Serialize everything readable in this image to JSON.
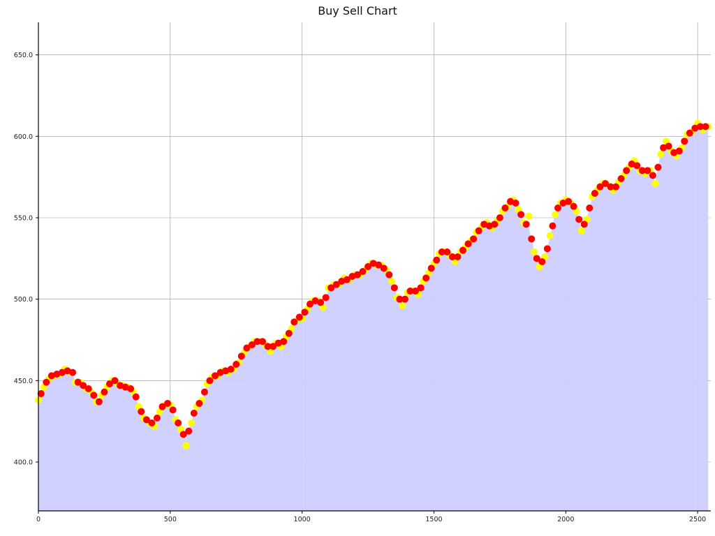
{
  "chart_data": {
    "type": "scatter",
    "title": "Buy Sell Chart",
    "xlabel": "",
    "ylabel": "",
    "xlim": [
      0,
      2550
    ],
    "ylim": [
      370,
      670
    ],
    "x_ticks": [
      0,
      500,
      1000,
      1500,
      2000,
      2500
    ],
    "x_tick_labels": [
      "0",
      "500",
      "1000",
      "1500",
      "2000",
      "2500"
    ],
    "y_ticks": [
      400,
      450,
      500,
      550,
      600,
      650
    ],
    "y_tick_labels": [
      "400.0",
      "450.0",
      "500.0",
      "550.0",
      "600.0",
      "650.0"
    ],
    "grid": true,
    "colors": {
      "area_fill": "#cfcfff",
      "buy_points": "#ffff00",
      "sell_points": "#ff0000",
      "grid": "#999999",
      "axis": "#000000"
    },
    "series": [
      {
        "type": "area",
        "x": [
          0,
          20,
          40,
          60,
          80,
          100,
          120,
          140,
          160,
          180,
          200,
          220,
          240,
          260,
          280,
          300,
          320,
          340,
          360,
          380,
          400,
          420,
          440,
          460,
          480,
          500,
          520,
          540,
          560,
          580,
          600,
          620,
          640,
          660,
          680,
          700,
          720,
          740,
          760,
          780,
          800,
          820,
          840,
          860,
          880,
          900,
          920,
          940,
          960,
          980,
          1000,
          1020,
          1040,
          1060,
          1080,
          1100,
          1120,
          1140,
          1160,
          1180,
          1200,
          1220,
          1240,
          1260,
          1280,
          1300,
          1320,
          1340,
          1360,
          1380,
          1400,
          1420,
          1440,
          1460,
          1480,
          1500,
          1520,
          1540,
          1560,
          1580,
          1600,
          1620,
          1640,
          1660,
          1680,
          1700,
          1720,
          1740,
          1760,
          1780,
          1800,
          1820,
          1840,
          1860,
          1880,
          1900,
          1920,
          1940,
          1960,
          1980,
          2000,
          2020,
          2040,
          2060,
          2080,
          2100,
          2120,
          2140,
          2160,
          2180,
          2200,
          2220,
          2240,
          2260,
          2280,
          2300,
          2320,
          2340,
          2360,
          2380,
          2400,
          2420,
          2440,
          2460,
          2480,
          2500,
          2520,
          2540
        ],
        "values": [
          439,
          447,
          452,
          454,
          455,
          456,
          456,
          450,
          448,
          446,
          444,
          438,
          440,
          445,
          451,
          449,
          446,
          447,
          444,
          435,
          428,
          425,
          423,
          432,
          436,
          436,
          427,
          421,
          414,
          425,
          435,
          437,
          449,
          451,
          454,
          455,
          456,
          458,
          462,
          468,
          472,
          473,
          475,
          473,
          469,
          474,
          472,
          476,
          483,
          488,
          489,
          495,
          498,
          500,
          496,
          506,
          508,
          510,
          512,
          513,
          514,
          516,
          519,
          521,
          522,
          520,
          517,
          512,
          502,
          498,
          503,
          506,
          504,
          510,
          517,
          521,
          527,
          530,
          528,
          524,
          528,
          533,
          535,
          540,
          545,
          546,
          545,
          547,
          553,
          558,
          562,
          556,
          548,
          544,
          530,
          521,
          525,
          538,
          553,
          558,
          560,
          560,
          555,
          543,
          550,
          562,
          568,
          570,
          571,
          568,
          571,
          577,
          582,
          584,
          580,
          578,
          580,
          572,
          590,
          596,
          592,
          589,
          594,
          600,
          604,
          607,
          605,
          607
        ]
      },
      {
        "name": "",
        "kind": "buy",
        "x": [
          0,
          20,
          40,
          60,
          80,
          100,
          120,
          140,
          160,
          180,
          200,
          220,
          240,
          260,
          280,
          300,
          320,
          340,
          360,
          380,
          400,
          420,
          440,
          460,
          480,
          500,
          520,
          540,
          560,
          580,
          600,
          620,
          640,
          660,
          680,
          700,
          720,
          740,
          760,
          780,
          800,
          820,
          840,
          860,
          880,
          900,
          920,
          940,
          960,
          980,
          1000,
          1020,
          1040,
          1060,
          1080,
          1100,
          1120,
          1140,
          1160,
          1180,
          1200,
          1220,
          1240,
          1260,
          1280,
          1300,
          1320,
          1340,
          1360,
          1380,
          1400,
          1420,
          1440,
          1460,
          1480,
          1500,
          1520,
          1540,
          1560,
          1580,
          1600,
          1620,
          1640,
          1660,
          1680,
          1700,
          1720,
          1740,
          1760,
          1780,
          1800,
          1820,
          1840,
          1860,
          1880,
          1900,
          1920,
          1940,
          1960,
          1980,
          2000,
          2020,
          2040,
          2060,
          2080,
          2100,
          2120,
          2140,
          2160,
          2180,
          2200,
          2220,
          2240,
          2260,
          2280,
          2300,
          2320,
          2340,
          2360,
          2380,
          2400,
          2420,
          2440,
          2460,
          2480,
          2500,
          2520,
          2540
        ],
        "values": [
          438,
          446,
          451,
          453,
          454,
          457,
          455,
          449,
          449,
          445,
          443,
          437,
          441,
          446,
          450,
          448,
          447,
          446,
          443,
          434,
          427,
          424,
          422,
          431,
          435,
          435,
          426,
          420,
          410,
          424,
          434,
          438,
          448,
          452,
          453,
          456,
          455,
          457,
          461,
          467,
          471,
          474,
          474,
          472,
          468,
          473,
          471,
          477,
          482,
          487,
          488,
          494,
          499,
          499,
          495,
          507,
          509,
          509,
          513,
          512,
          515,
          515,
          518,
          522,
          521,
          521,
          518,
          511,
          501,
          496,
          504,
          505,
          503,
          511,
          516,
          522,
          528,
          529,
          527,
          523,
          529,
          532,
          536,
          541,
          544,
          547,
          544,
          548,
          554,
          557,
          561,
          555,
          547,
          551,
          529,
          520,
          526,
          539,
          552,
          559,
          561,
          559,
          554,
          542,
          549,
          563,
          567,
          571,
          570,
          567,
          572,
          576,
          581,
          585,
          579,
          577,
          579,
          571,
          589,
          597,
          591,
          588,
          593,
          601,
          603,
          608,
          604,
          606
        ]
      },
      {
        "name": "",
        "kind": "sell",
        "x": [
          10,
          30,
          50,
          70,
          90,
          110,
          130,
          150,
          170,
          190,
          210,
          230,
          250,
          270,
          290,
          310,
          330,
          350,
          370,
          390,
          410,
          430,
          450,
          470,
          490,
          510,
          530,
          550,
          570,
          590,
          610,
          630,
          650,
          670,
          690,
          710,
          730,
          750,
          770,
          790,
          810,
          830,
          850,
          870,
          890,
          910,
          930,
          950,
          970,
          990,
          1010,
          1030,
          1050,
          1070,
          1090,
          1110,
          1130,
          1150,
          1170,
          1190,
          1210,
          1230,
          1250,
          1270,
          1290,
          1310,
          1330,
          1350,
          1370,
          1390,
          1410,
          1430,
          1450,
          1470,
          1490,
          1510,
          1530,
          1550,
          1570,
          1590,
          1610,
          1630,
          1650,
          1670,
          1690,
          1710,
          1730,
          1750,
          1770,
          1790,
          1810,
          1830,
          1850,
          1870,
          1890,
          1910,
          1930,
          1950,
          1970,
          1990,
          2010,
          2030,
          2050,
          2070,
          2090,
          2110,
          2130,
          2150,
          2170,
          2190,
          2210,
          2230,
          2250,
          2270,
          2290,
          2310,
          2330,
          2350,
          2370,
          2390,
          2410,
          2430,
          2450,
          2470,
          2490,
          2510,
          2530
        ],
        "values": [
          442,
          449,
          453,
          454,
          455,
          456,
          455,
          449,
          447,
          445,
          441,
          437,
          443,
          448,
          450,
          447,
          446,
          445,
          440,
          431,
          426,
          424,
          427,
          434,
          436,
          432,
          424,
          417,
          419,
          430,
          436,
          443,
          450,
          453,
          455,
          456,
          457,
          460,
          465,
          470,
          472,
          474,
          474,
          471,
          471,
          473,
          474,
          479,
          486,
          489,
          492,
          497,
          499,
          498,
          501,
          507,
          509,
          511,
          512,
          514,
          515,
          517,
          520,
          522,
          521,
          519,
          515,
          507,
          500,
          500,
          505,
          505,
          507,
          513,
          519,
          524,
          529,
          529,
          526,
          526,
          530,
          534,
          537,
          542,
          546,
          545,
          546,
          550,
          556,
          560,
          559,
          552,
          546,
          537,
          525,
          523,
          531,
          545,
          556,
          559,
          560,
          557,
          549,
          546,
          556,
          565,
          569,
          571,
          569,
          569,
          574,
          579,
          583,
          582,
          579,
          579,
          576,
          581,
          593,
          594,
          590,
          591,
          597,
          602,
          605,
          606,
          606
        ]
      }
    ]
  }
}
